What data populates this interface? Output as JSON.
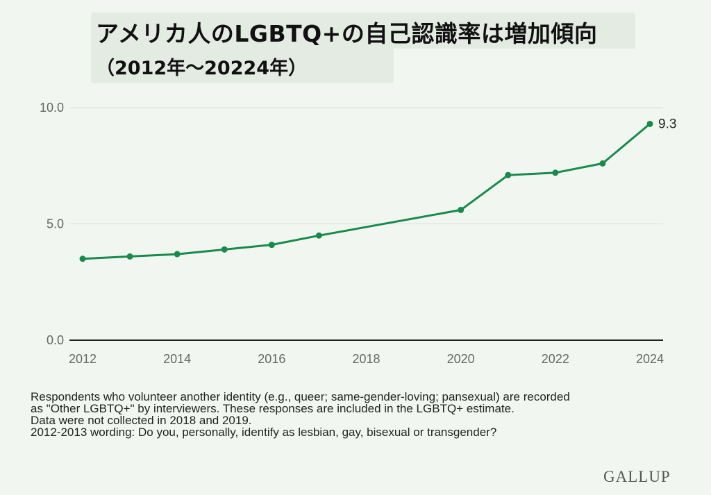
{
  "title": {
    "line1": "アメリカ人のLGBTQ+の自己認識率は増加傾向",
    "line2": "（2012年～20224年）"
  },
  "chart_data": {
    "type": "line",
    "x": [
      2012,
      2013,
      2014,
      2015,
      2016,
      2017,
      2020,
      2021,
      2022,
      2023,
      2024
    ],
    "series": [
      {
        "values": [
          3.5,
          3.6,
          3.7,
          3.9,
          4.1,
          4.5,
          5.6,
          7.1,
          7.2,
          7.6,
          9.3
        ]
      }
    ],
    "xlim": [
      2012,
      2024
    ],
    "ylim": [
      0,
      10
    ],
    "y_ticks": [
      "0.0",
      "5.0",
      "10.0"
    ],
    "x_ticks": [
      "2012",
      "2014",
      "2016",
      "2018",
      "2020",
      "2022",
      "2024"
    ],
    "end_label": "9.3",
    "grid": "horizontal",
    "line_color": "#188a4c"
  },
  "footnotes": [
    "Respondents who volunteer another identity (e.g., queer; same-gender-loving; pansexual) are recorded",
    "as \"Other LGBTQ+\" by interviewers. These responses are included in the LGBTQ+ estimate.",
    "Data were not collected in 2018 and 2019.",
    "2012-2013 wording: Do you, personally, identify as lesbian, gay, bisexual or transgender?"
  ],
  "logo": "GALLUP"
}
